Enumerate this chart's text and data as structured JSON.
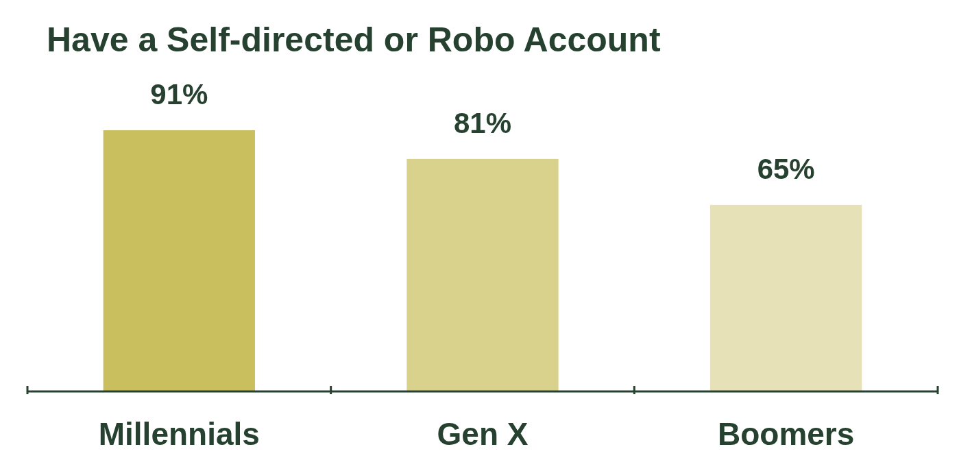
{
  "chart_data": {
    "type": "bar",
    "title": "Have a Self-directed or Robo Account",
    "categories": [
      "Millennials",
      "Gen X",
      "Boomers"
    ],
    "values": [
      91,
      81,
      65
    ],
    "colors": [
      "#cabf5e",
      "#d9d28c",
      "#e7e1b8"
    ],
    "value_labels": [
      "91%",
      "81%",
      "65%"
    ]
  }
}
